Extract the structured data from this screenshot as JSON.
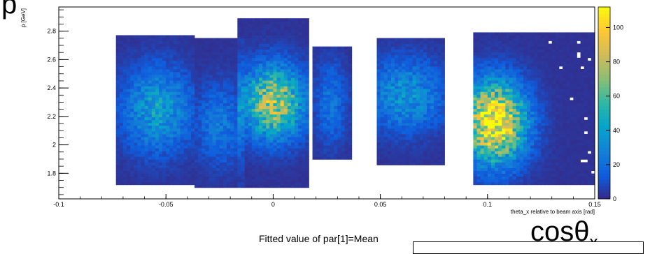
{
  "overlay": {
    "y_symbol": "p",
    "x_symbol_base": "cos",
    "x_symbol_greek": "θ",
    "x_symbol_sub": "x",
    "fit_caption": "Fitted value of par[1]=Mean"
  },
  "chart_data": {
    "type": "heatmap",
    "title": "",
    "xlabel": "theta_x relative to beam axis [rad]",
    "ylabel": "p [GeV]",
    "xlim": [
      -0.1,
      0.15
    ],
    "ylim": [
      1.62,
      2.97
    ],
    "x_ticks": [
      -0.1,
      -0.05,
      0,
      0.05,
      0.1,
      0.15
    ],
    "x_tick_labels": [
      "-0.1",
      "-0.05",
      "0",
      "0.05",
      "0.1",
      "0.15"
    ],
    "y_ticks": [
      1.8,
      2.0,
      2.2,
      2.4,
      2.6,
      2.8
    ],
    "y_tick_labels": [
      "1.8",
      "2",
      "2.2",
      "2.4",
      "2.6",
      "2.8"
    ],
    "colorbar": {
      "range": [
        0,
        112
      ],
      "ticks": [
        0,
        20,
        40,
        60,
        80,
        100
      ],
      "tick_labels": [
        "0",
        "20",
        "40",
        "60",
        "80",
        "100"
      ]
    },
    "grid": false,
    "legend": "none",
    "clusters": [
      {
        "x": -0.054,
        "y": 2.25,
        "sx": 0.011,
        "sy": 0.2,
        "peak": 38,
        "xmin": -0.074,
        "xmax": -0.037,
        "ymin": 1.72,
        "ymax": 2.78
      },
      {
        "x": -0.025,
        "y": 2.15,
        "sx": 0.008,
        "sy": 0.19,
        "peak": 22,
        "xmin": -0.036,
        "xmax": -0.013,
        "ymin": 1.7,
        "ymax": 2.75
      },
      {
        "x": 0.0,
        "y": 2.3,
        "sx": 0.01,
        "sy": 0.17,
        "peak": 76,
        "xmin": -0.016,
        "xmax": 0.016,
        "ymin": 1.7,
        "ymax": 2.9
      },
      {
        "x": 0.027,
        "y": 2.3,
        "sx": 0.005,
        "sy": 0.2,
        "peak": 20,
        "xmin": 0.018,
        "xmax": 0.036,
        "ymin": 1.9,
        "ymax": 2.7
      },
      {
        "x": 0.062,
        "y": 2.35,
        "sx": 0.012,
        "sy": 0.17,
        "peak": 34,
        "xmin": 0.048,
        "xmax": 0.08,
        "ymin": 1.85,
        "ymax": 2.75
      },
      {
        "x": 0.103,
        "y": 2.16,
        "sx": 0.01,
        "sy": 0.19,
        "peak": 108,
        "xmin": 0.093,
        "xmax": 0.15,
        "ymin": 1.72,
        "ymax": 2.8
      }
    ]
  }
}
